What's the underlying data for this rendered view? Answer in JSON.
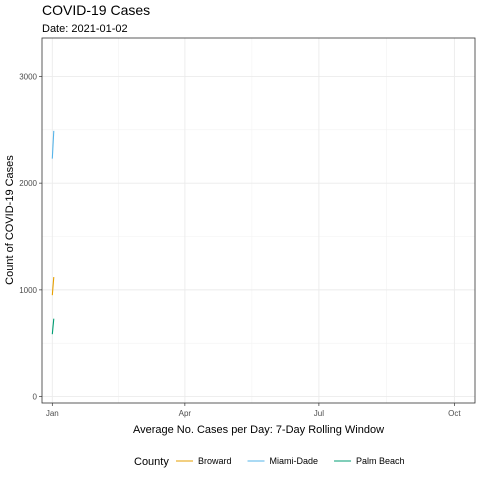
{
  "chart_data": {
    "type": "line",
    "title": "COVID-19 Cases",
    "subtitle": "Date: 2021-01-02",
    "xlabel": "Average No. Cases per Day: 7-Day Rolling Window",
    "ylabel": "Count of COVID-19 Cases",
    "xlim": [
      "2020-12-25",
      "2021-10-15"
    ],
    "ylim": [
      -60,
      3360
    ],
    "x_ticks": [
      {
        "date": "2021-01-01",
        "label": "Jan"
      },
      {
        "date": "2021-04-01",
        "label": "Apr"
      },
      {
        "date": "2021-07-01",
        "label": "Jul"
      },
      {
        "date": "2021-10-01",
        "label": "Oct"
      }
    ],
    "y_ticks": [
      0,
      1000,
      2000,
      3000
    ],
    "grid": true,
    "legend": {
      "title": "County",
      "position": "bottom"
    },
    "series": [
      {
        "name": "Broward",
        "color": "#E69F00",
        "points": [
          {
            "x": "2021-01-01",
            "y": 950
          },
          {
            "x": "2021-01-02",
            "y": 1120
          }
        ]
      },
      {
        "name": "Miami-Dade",
        "color": "#56B4E9",
        "points": [
          {
            "x": "2021-01-01",
            "y": 2230
          },
          {
            "x": "2021-01-02",
            "y": 2490
          }
        ]
      },
      {
        "name": "Palm Beach",
        "color": "#009E73",
        "points": [
          {
            "x": "2021-01-01",
            "y": 585
          },
          {
            "x": "2021-01-02",
            "y": 730
          }
        ]
      }
    ]
  }
}
